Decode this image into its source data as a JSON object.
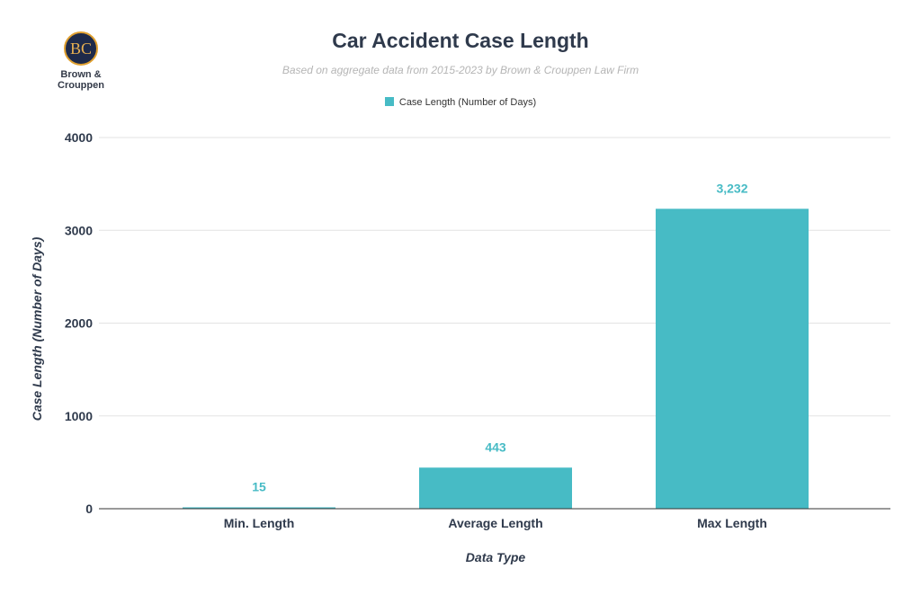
{
  "logo": {
    "monogram": "BC",
    "text_line1": "Brown &",
    "text_line2": "Crouppen"
  },
  "chart_data": {
    "type": "bar",
    "title": "Car Accident Case Length",
    "subtitle": "Based on aggregate data from 2015-2023 by Brown & Crouppen Law Firm",
    "categories": [
      "Min. Length",
      "Average Length",
      "Max Length"
    ],
    "series": [
      {
        "name": "Case Length (Number of Days)",
        "values": [
          15,
          443,
          3232
        ],
        "data_labels": [
          "15",
          "443",
          "3,232"
        ],
        "color": "#47bbc5"
      }
    ],
    "xlabel": "Data Type",
    "ylabel": "Case Length (Number of Days)",
    "ylim": [
      0,
      4000
    ],
    "yticks": [
      0,
      1000,
      2000,
      3000,
      4000
    ],
    "grid": true,
    "legend": "top"
  }
}
